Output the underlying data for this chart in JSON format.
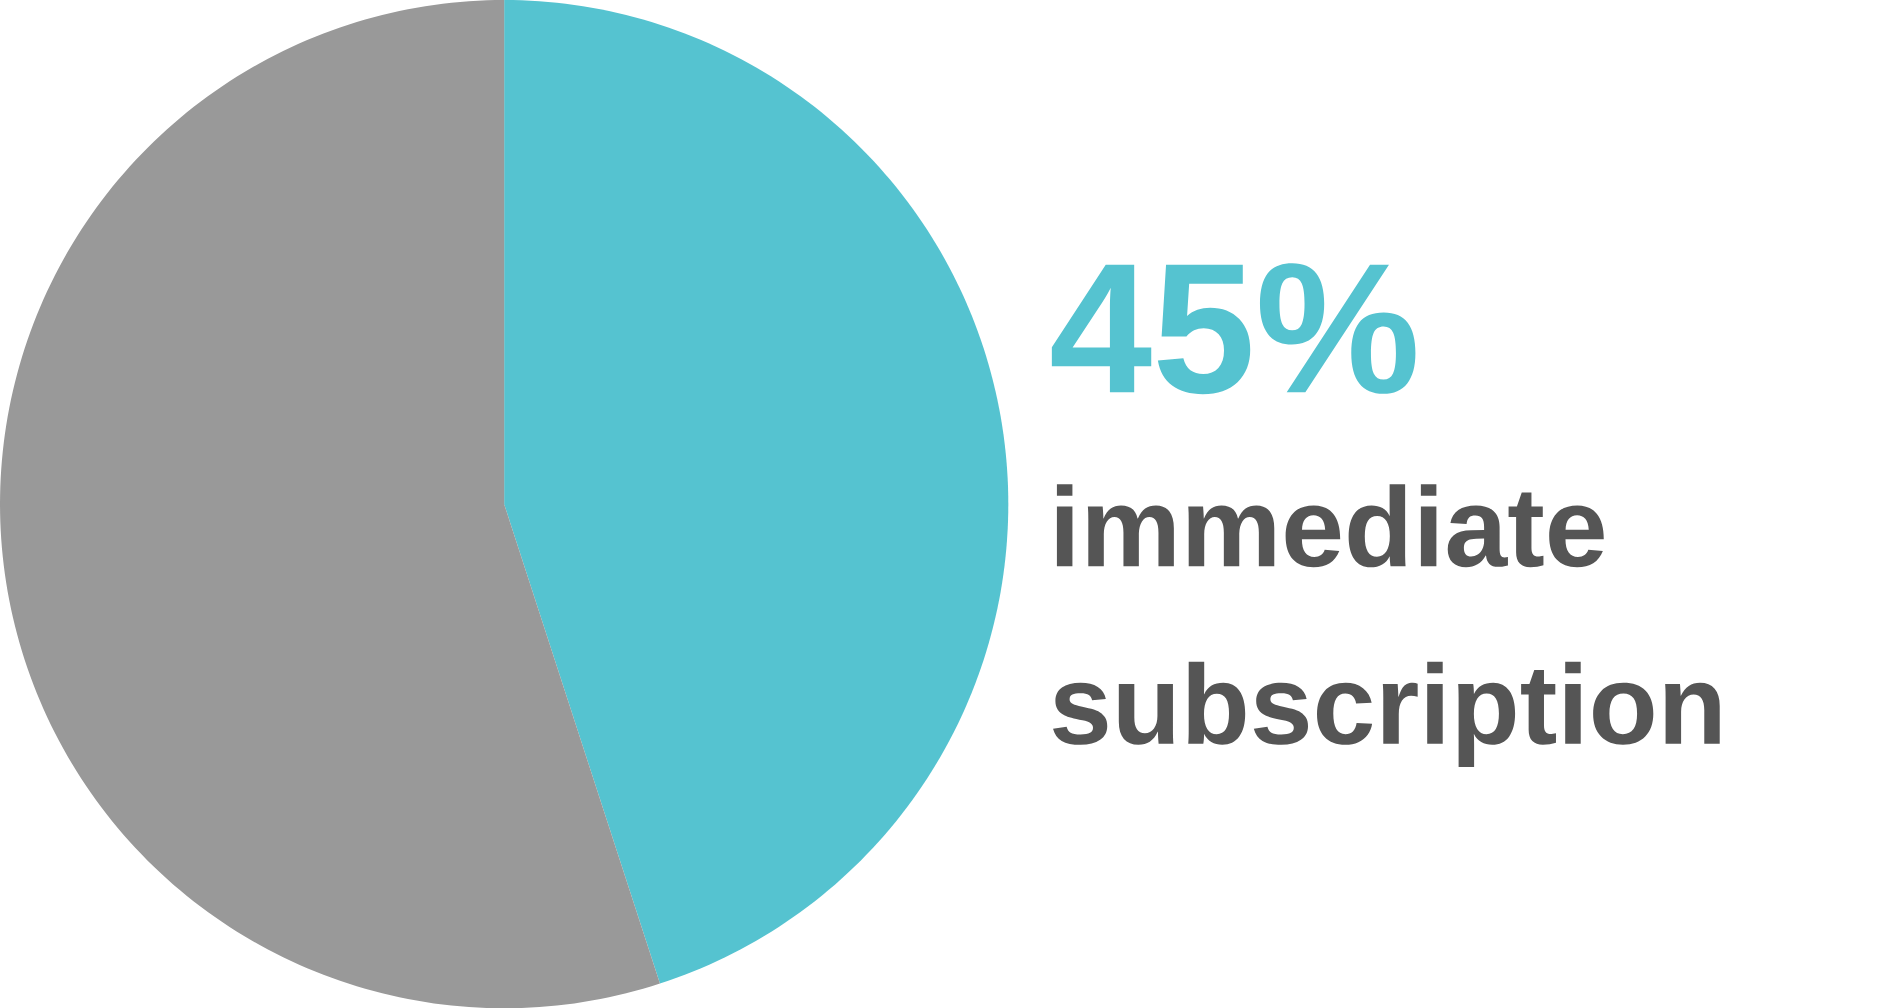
{
  "chart_data": {
    "type": "pie",
    "categories": [
      "immediate subscription",
      null
    ],
    "values": [
      45,
      55
    ],
    "colors": [
      "#55c3d0",
      "#999999"
    ],
    "value_labels": [
      "45%",
      null
    ]
  }
}
